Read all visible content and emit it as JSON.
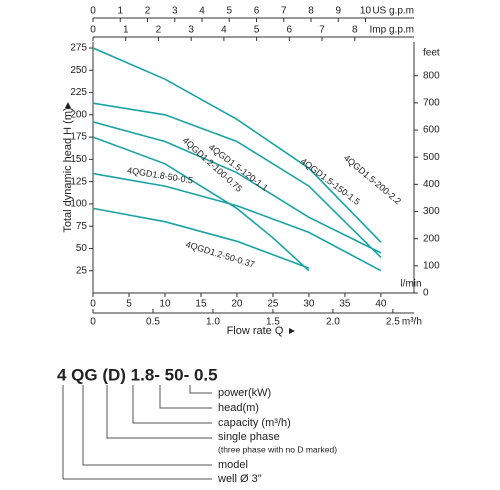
{
  "chart_data": {
    "type": "line",
    "x_label": "Flow rate Q",
    "y_label": "Total dynamic head H (m)",
    "x_unit": "l/min",
    "xlim": [
      0,
      44.6
    ],
    "xticks": [
      0,
      5,
      10,
      15,
      20,
      25,
      30,
      35,
      40
    ],
    "ylim": [
      0,
      275
    ],
    "yticks": [
      25,
      50,
      75,
      100,
      125,
      150,
      175,
      200,
      225,
      250,
      275
    ],
    "top_axes": [
      {
        "unit": "US g.p.m",
        "xlim": [
          0,
          11.78
        ],
        "xticks": [
          0,
          1,
          2,
          3,
          4,
          5,
          6,
          7,
          8,
          9,
          10
        ]
      },
      {
        "unit": "Imp g.p.m",
        "xlim": [
          0,
          9.81
        ],
        "xticks": [
          0,
          1,
          2,
          3,
          4,
          5,
          6,
          7,
          8
        ]
      }
    ],
    "bottom_axis2": {
      "unit": "m³/h",
      "xlim": [
        0,
        2.676
      ],
      "xticks": [
        0,
        0.5,
        {
          "value": 1,
          "label": "1.0"
        },
        1.5,
        {
          "value": 2,
          "label": "2.0"
        },
        2.5
      ]
    },
    "right_axis": {
      "unit": "feet",
      "ylim": [
        0,
        902.2
      ],
      "yticks": [
        0,
        100,
        200,
        300,
        400,
        500,
        600,
        700,
        800
      ]
    },
    "series": [
      {
        "name": "4QGD1.5-200-2.2",
        "color": "#1aa3a3",
        "x": [
          0,
          10,
          20,
          30,
          40
        ],
        "values": [
          275,
          240,
          195,
          140,
          57
        ]
      },
      {
        "name": "4QGD1.5-150-1.5",
        "color": "#1aa3a3",
        "x": [
          0,
          10,
          20,
          30,
          40
        ],
        "values": [
          213,
          200,
          170,
          120,
          40
        ]
      },
      {
        "name": "4QGD1.5-120-1.1",
        "color": "#1aa3a3",
        "x": [
          0,
          10,
          20,
          30,
          40
        ],
        "values": [
          192,
          170,
          135,
          85,
          45
        ]
      },
      {
        "name": "4QGD1.2-100-0.75",
        "color": "#1aa3a3",
        "x": [
          0,
          10,
          20,
          25,
          30
        ],
        "values": [
          175,
          145,
          95,
          62,
          25
        ]
      },
      {
        "name": "4QGD1.8-50-0.5",
        "color": "#1aa3a3",
        "x": [
          0,
          10,
          20,
          30,
          40
        ],
        "values": [
          134,
          120,
          98,
          68,
          25
        ]
      },
      {
        "name": "4QGD1.2-50-0.37",
        "color": "#1aa3a3",
        "x": [
          0,
          10,
          20,
          30
        ],
        "values": [
          95,
          80,
          58,
          28
        ]
      }
    ]
  },
  "model_code": {
    "code": "4 QG (D) 1.8- 50- 0.5",
    "items": [
      "power(kW)",
      "head(m)",
      "capacity (m³/h)",
      "single phase",
      "(three phase with no D marked)",
      "model",
      "well Ø 3\""
    ]
  }
}
